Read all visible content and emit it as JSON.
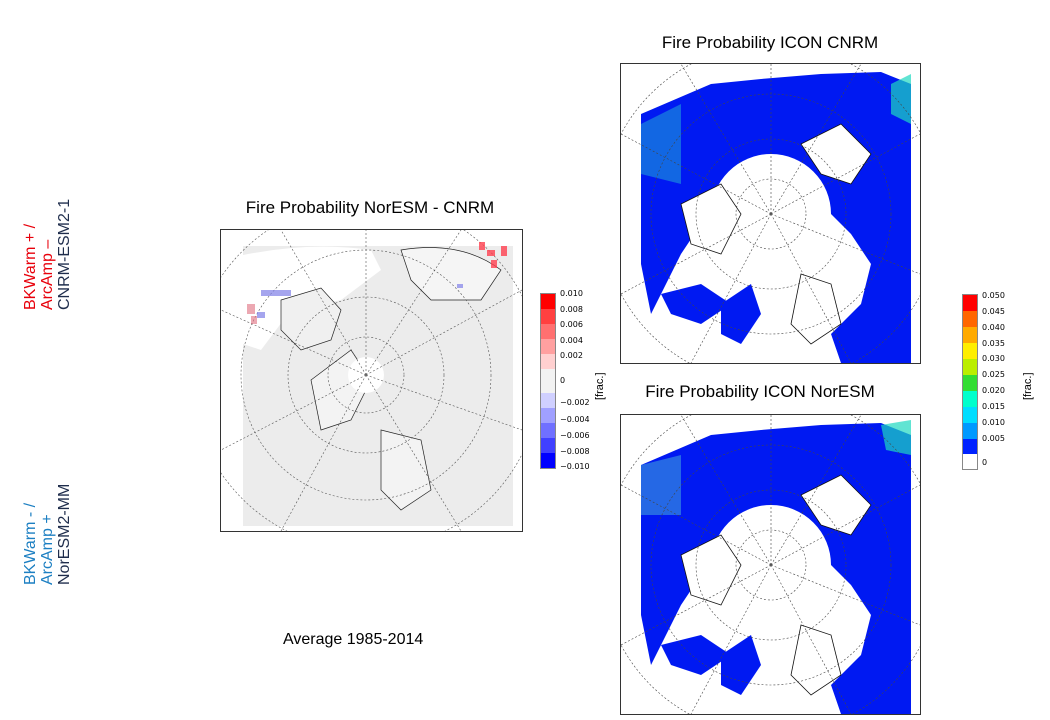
{
  "side_labels": {
    "top_red_line1": "BKWarm + /",
    "top_red_line2": "ArcAmp –",
    "top_model": "CNRM-ESM2-1",
    "bottom_blue_line1": "BKWarm - /",
    "bottom_blue_line2": "ArcAmp +",
    "bottom_model": "NorESM2-MM"
  },
  "maps": {
    "diff": {
      "title": "Fire Probability NorESM - CNRM"
    },
    "cnrm": {
      "title": "Fire Probability ICON CNRM"
    },
    "noresm": {
      "title": "Fire Probability ICON NorESM"
    }
  },
  "colorbars": {
    "diff": {
      "unit": "[frac.]",
      "ticks": [
        "0.010",
        "0.008",
        "0.006",
        "0.004",
        "0.002",
        "0",
        "−0.002",
        "−0.004",
        "−0.006",
        "−0.008",
        "−0.010"
      ],
      "colors": [
        "#ff0000",
        "#ff4040",
        "#ff7070",
        "#ffa0a0",
        "#ffd0d0",
        "#f2f2f2",
        "#f2f2f2",
        "#d0d0ff",
        "#a0a0ff",
        "#7070ff",
        "#4040ff",
        "#0000ff"
      ]
    },
    "fire": {
      "unit": "[frac.]",
      "ticks": [
        "0.050",
        "0.045",
        "0.040",
        "0.035",
        "0.030",
        "0.025",
        "0.020",
        "0.015",
        "0.010",
        "0.005",
        "0"
      ],
      "colors": [
        "#ff0000",
        "#ff6600",
        "#ffaa00",
        "#ffee00",
        "#bbee00",
        "#33dd33",
        "#00ffcc",
        "#00ddff",
        "#0099ff",
        "#0022ff",
        "#ffffff"
      ]
    }
  },
  "caption": "Average 1985-2014"
}
